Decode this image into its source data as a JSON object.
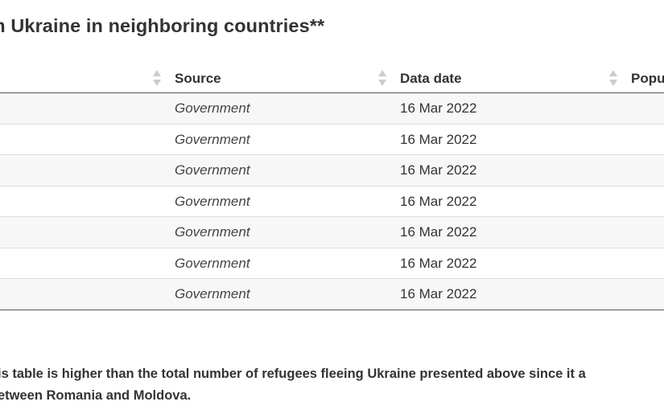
{
  "title": "rom Ukraine in neighboring countries**",
  "table": {
    "headers": {
      "source": "Source",
      "date": "Data date",
      "population": "Popu"
    },
    "rows": [
      {
        "source": "Government",
        "date": "16 Mar 2022"
      },
      {
        "source": "Government",
        "date": "16 Mar 2022"
      },
      {
        "source": "Government",
        "date": "16 Mar 2022"
      },
      {
        "source": "Government",
        "date": "16 Mar 2022"
      },
      {
        "source": "Government",
        "date": "16 Mar 2022"
      },
      {
        "source": "Government",
        "date": "16 Mar 2022"
      },
      {
        "source": "Government",
        "date": "16 Mar 2022"
      }
    ]
  },
  "footnote": {
    "line1": "is table is higher than the total number of refugees fleeing Ukraine presented above since it a",
    "line2": "etween Romania and Moldova."
  },
  "icons": {
    "sort": "sort-icon"
  },
  "colors": {
    "text": "#333333",
    "row_stripe": "#f7f7f7",
    "row_border": "#dddddd",
    "header_border": "#555555",
    "sort_icon": "#cccccc"
  }
}
